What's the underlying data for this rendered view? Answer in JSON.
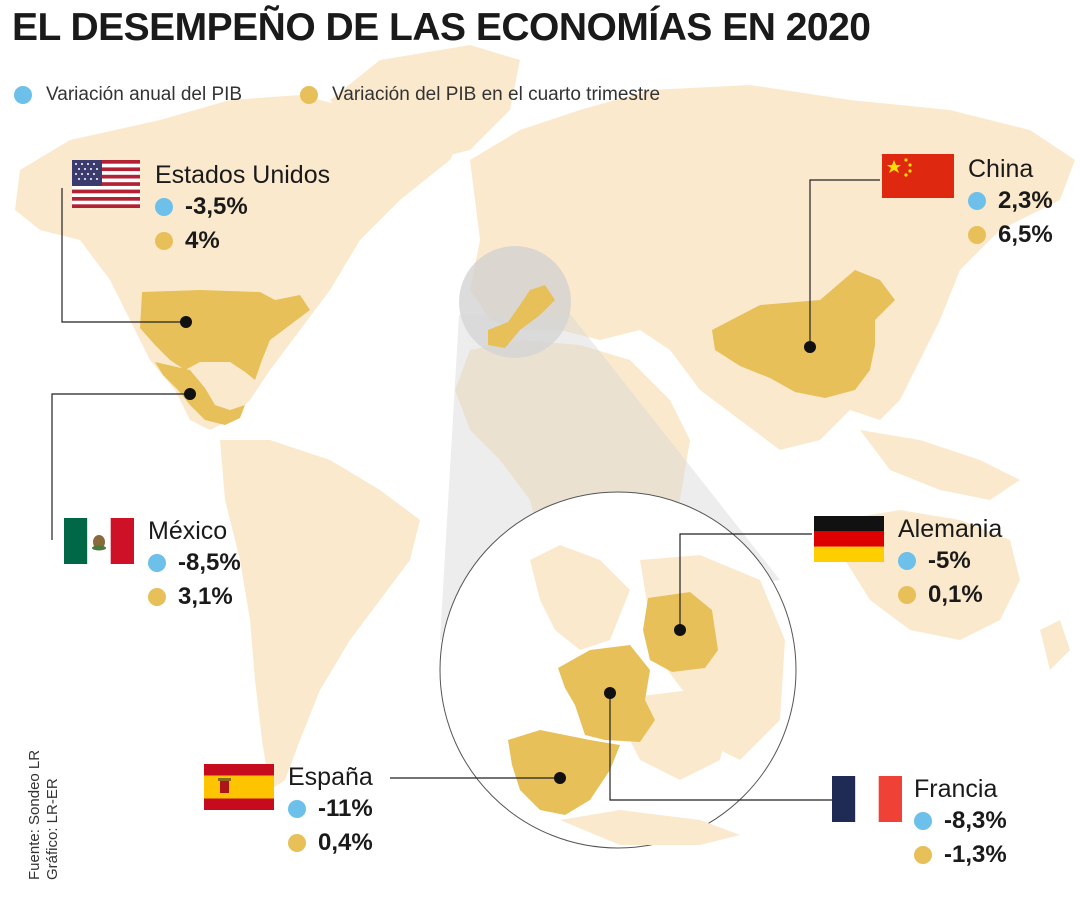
{
  "title": "EL DESEMPEÑO DE LAS ECONOMÍAS EN 2020",
  "legend": {
    "annual": {
      "label": "Variación anual del PIB",
      "color": "#6cc0ea"
    },
    "q4": {
      "label": "Variación del PIB en el cuarto trimestre",
      "color": "#e8c05a"
    }
  },
  "countries": {
    "usa": {
      "name": "Estados Unidos",
      "annual": "-3,5%",
      "q4": "4%"
    },
    "china": {
      "name": "China",
      "annual": "2,3%",
      "q4": "6,5%"
    },
    "mexico": {
      "name": "México",
      "annual": "-8,5%",
      "q4": "3,1%"
    },
    "germany": {
      "name": "Alemania",
      "annual": "-5%",
      "q4": "0,1%"
    },
    "spain": {
      "name": "España",
      "annual": "-11%",
      "q4": "0,4%"
    },
    "france": {
      "name": "Francia",
      "annual": "-8,3%",
      "q4": "-1,3%"
    }
  },
  "source": {
    "line1": "Fuente: Sondeo LR",
    "line2": "Gráfico: LR-ER"
  },
  "colors": {
    "land": "#fbe9cd",
    "highlight": "#e8c05a",
    "zoom": "#d0d0d0"
  }
}
